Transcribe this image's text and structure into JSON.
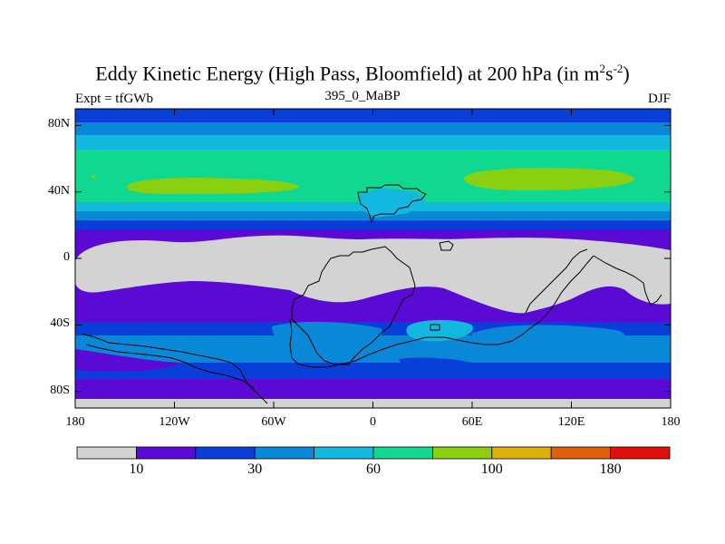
{
  "title": {
    "prefix": "Eddy Kinetic Energy (High Pass, Bloomfield) at 200 hPa (in m",
    "sup1": "2",
    "mid": "s",
    "sup2": "-2",
    "suffix": ")"
  },
  "left_label": "Expt = tfGWb",
  "center_label": "395_0_MaBP",
  "right_label": "DJF",
  "map": {
    "lat_ticks": [
      "80N",
      "40N",
      "0",
      "40S",
      "80S"
    ],
    "lat_values": [
      80,
      40,
      0,
      -40,
      -80
    ],
    "lon_ticks": [
      "180",
      "120W",
      "60W",
      "0",
      "60E",
      "120E",
      "180"
    ],
    "lon_values": [
      -180,
      -120,
      -60,
      0,
      60,
      120,
      180
    ],
    "lat_range": [
      -90,
      90
    ],
    "lon_range": [
      -180,
      180
    ]
  },
  "colorbar": {
    "colors": [
      "#d3d3d3",
      "#5a0ad4",
      "#0a3ed8",
      "#0a88d8",
      "#12b8e0",
      "#10d890",
      "#8ad010",
      "#e0b00a",
      "#e0600a",
      "#e0100a"
    ],
    "labels": [
      "10",
      "30",
      "60",
      "100",
      "180"
    ]
  },
  "levels": {
    "gray": "#d3d3d3",
    "purple": "#5a0ad4",
    "blue": "#0a3ed8",
    "mid_blue": "#0a88d8",
    "light_blue": "#12b8e0",
    "teal": "#10d890",
    "yellow_green": "#8ad010"
  }
}
